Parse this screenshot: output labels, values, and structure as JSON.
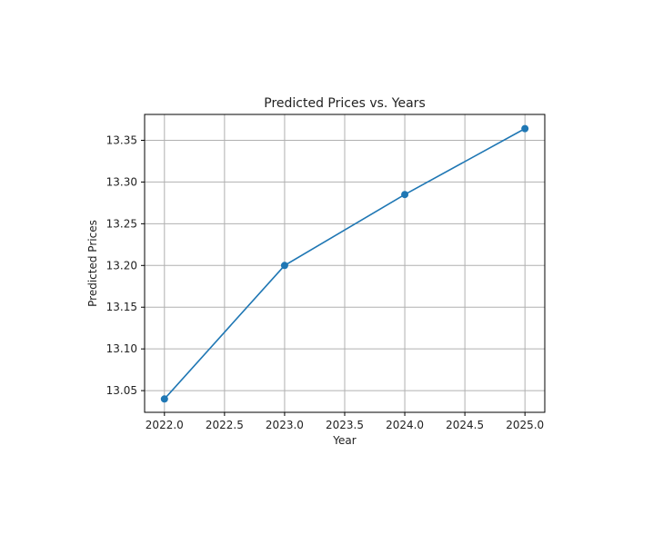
{
  "chart_data": {
    "type": "line",
    "title": "Predicted Prices vs. Years",
    "xlabel": "Year",
    "ylabel": "Predicted Prices",
    "x": [
      2022,
      2023,
      2024,
      2025
    ],
    "series": [
      {
        "values": [
          13.04,
          13.2,
          13.285,
          13.364
        ]
      }
    ],
    "xlim": [
      2021.835,
      2025.165
    ],
    "ylim": [
      13.024,
      13.381
    ],
    "x_ticks": [
      2022.0,
      2022.5,
      2023.0,
      2023.5,
      2024.0,
      2024.5,
      2025.0
    ],
    "x_tick_labels": [
      "2022.0",
      "2022.5",
      "2023.0",
      "2023.5",
      "2024.0",
      "2024.5",
      "2025.0"
    ],
    "y_ticks": [
      13.05,
      13.1,
      13.15,
      13.2,
      13.25,
      13.3,
      13.35
    ],
    "y_tick_labels": [
      "13.05",
      "13.10",
      "13.15",
      "13.20",
      "13.25",
      "13.30",
      "13.35"
    ],
    "grid": true,
    "markers": true,
    "color": "#1f77b4"
  }
}
